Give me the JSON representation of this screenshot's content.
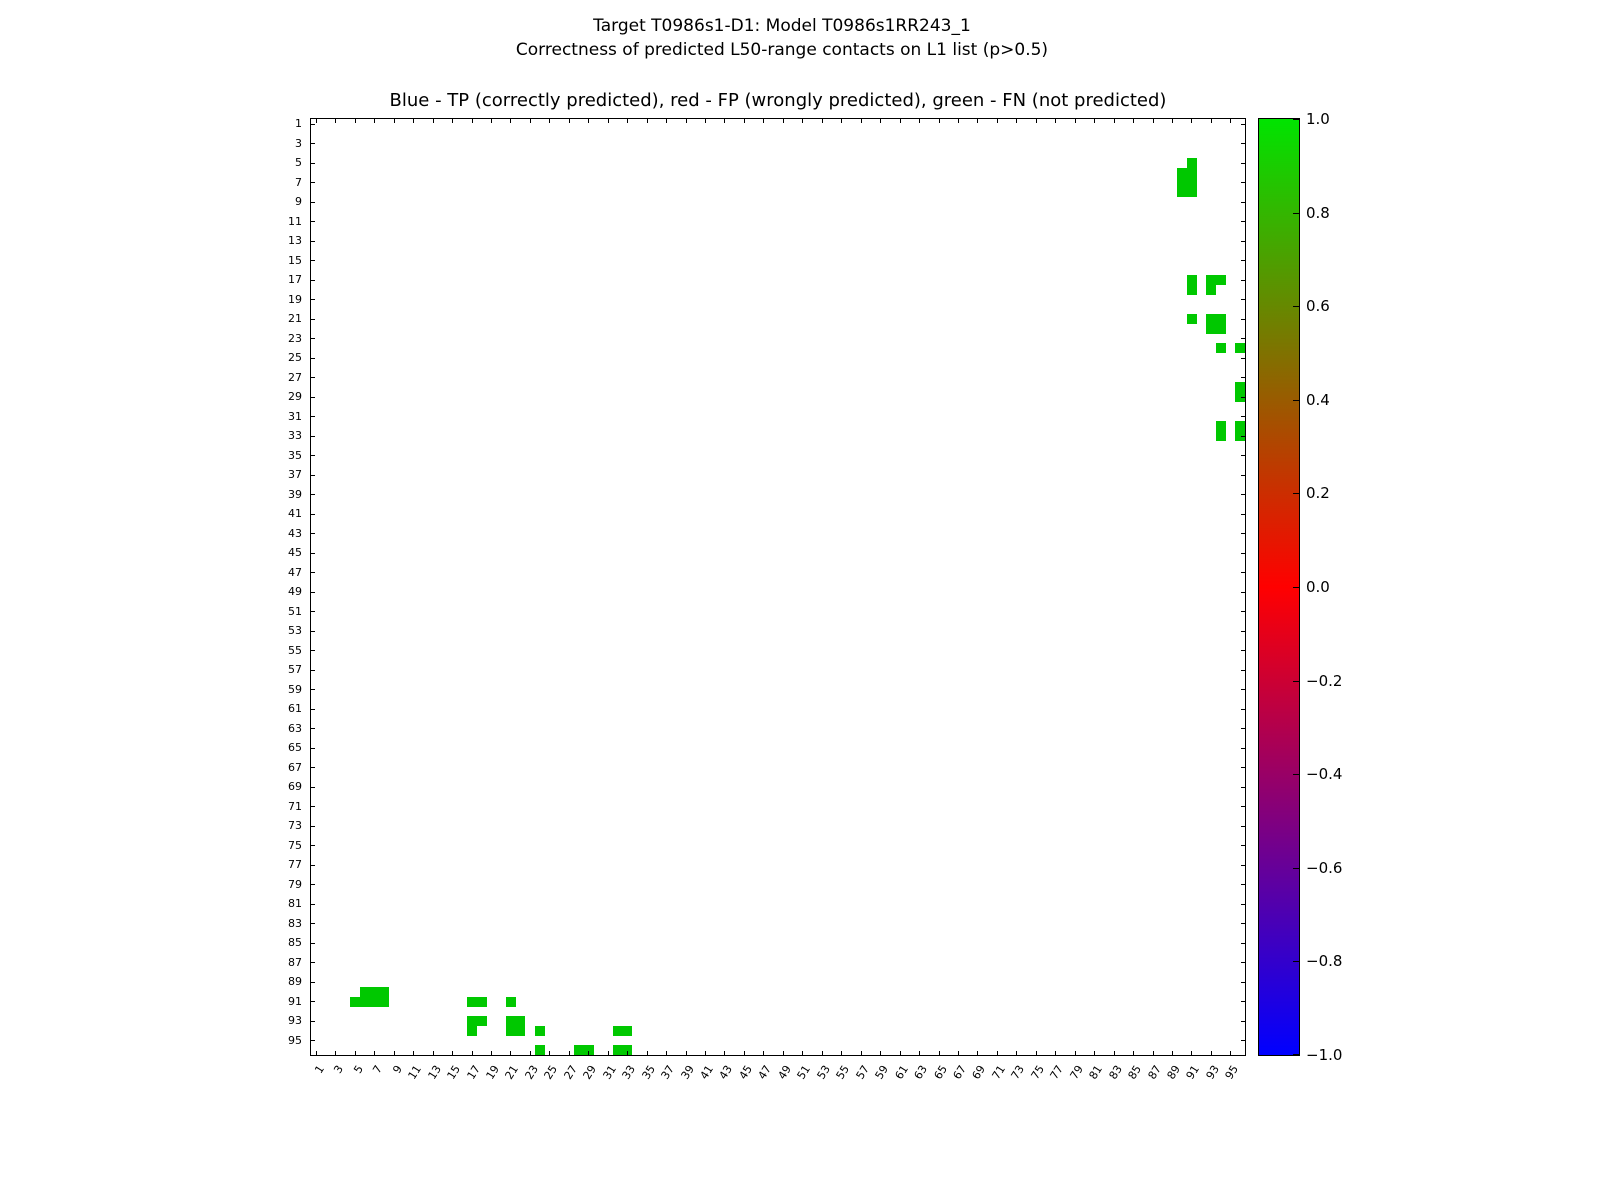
{
  "figure": {
    "suptitle_line1": "Target T0986s1-D1: Model T0986s1RR243_1",
    "suptitle_line2": "Correctness of predicted L50-range contacts on L1 list (p>0.5)"
  },
  "chart_data": {
    "type": "heatmap",
    "title": "Blue - TP (correctly predicted), red - FP (wrongly predicted), green - FN (not predicted)",
    "x_axis": {
      "range": [
        1,
        96
      ],
      "tick_labels": [
        1,
        3,
        5,
        7,
        9,
        11,
        13,
        15,
        17,
        19,
        21,
        23,
        25,
        27,
        29,
        31,
        33,
        35,
        37,
        39,
        41,
        43,
        45,
        47,
        49,
        51,
        53,
        55,
        57,
        59,
        61,
        63,
        65,
        67,
        69,
        71,
        73,
        75,
        77,
        79,
        81,
        83,
        85,
        87,
        89,
        91,
        93,
        95
      ]
    },
    "y_axis": {
      "range": [
        1,
        96
      ],
      "direction": "top-to-bottom",
      "tick_labels": [
        1,
        3,
        5,
        7,
        9,
        11,
        13,
        15,
        17,
        19,
        21,
        23,
        25,
        27,
        29,
        31,
        33,
        35,
        37,
        39,
        41,
        43,
        45,
        47,
        49,
        51,
        53,
        55,
        57,
        59,
        61,
        63,
        65,
        67,
        69,
        71,
        73,
        75,
        77,
        79,
        81,
        83,
        85,
        87,
        89,
        91,
        93,
        95
      ]
    },
    "symmetric": true,
    "grid": false,
    "fn_color": "#00c800",
    "tp_color": "#0000ff",
    "fp_color": "#ff0000",
    "fn_contacts": [
      [
        5,
        91
      ],
      [
        6,
        90
      ],
      [
        6,
        91
      ],
      [
        7,
        90
      ],
      [
        7,
        91
      ],
      [
        8,
        90
      ],
      [
        8,
        91
      ],
      [
        17,
        91
      ],
      [
        18,
        91
      ],
      [
        17,
        93
      ],
      [
        17,
        94
      ],
      [
        18,
        93
      ],
      [
        21,
        91
      ],
      [
        21,
        93
      ],
      [
        21,
        94
      ],
      [
        22,
        93
      ],
      [
        22,
        94
      ],
      [
        24,
        94
      ],
      [
        24,
        96
      ],
      [
        28,
        96
      ],
      [
        29,
        96
      ],
      [
        32,
        94
      ],
      [
        33,
        94
      ],
      [
        32,
        96
      ],
      [
        33,
        96
      ]
    ],
    "tp_contacts": [],
    "fp_contacts": [],
    "colorbar": {
      "range": [
        -1.0,
        1.0
      ],
      "tick_labels": [
        "1.0",
        "0.8",
        "0.6",
        "0.4",
        "0.2",
        "0.0",
        "−0.2",
        "−0.4",
        "−0.6",
        "−0.8",
        "−1.0"
      ],
      "gradient_top_color": "#00e400",
      "gradient_mid_color": "#ff0000",
      "gradient_bottom_color": "#0000ff"
    }
  }
}
